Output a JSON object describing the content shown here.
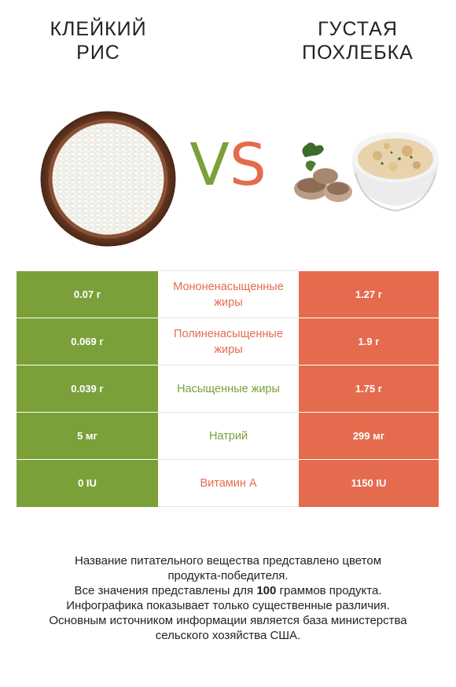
{
  "left_food": {
    "title": "КЛЕЙКИЙ\nРИС",
    "title_line1": "КЛЕЙКИЙ",
    "title_line2": "РИС",
    "image": "bowl-of-rice",
    "color": "#7ba03a"
  },
  "right_food": {
    "title_line1": "ГУСТАЯ",
    "title_line2": "ПОХЛЕБКА",
    "image": "bowl-of-clam-chowder",
    "color": "#e56b4e"
  },
  "vs": {
    "v": "V",
    "s": "S"
  },
  "rows": [
    {
      "left": "0.07 г",
      "label": "Мононенасыщенные жиры",
      "right": "1.27 г",
      "winner": "right"
    },
    {
      "left": "0.069 г",
      "label": "Полиненасыщенные жиры",
      "right": "1.9 г",
      "winner": "right"
    },
    {
      "left": "0.039 г",
      "label": "Насыщенные жиры",
      "right": "1.75 г",
      "winner": "left"
    },
    {
      "left": "5 мг",
      "label": "Натрий",
      "right": "299 мг",
      "winner": "left"
    },
    {
      "left": "0 IU",
      "label": "Витамин A",
      "right": "1150 IU",
      "winner": "right"
    }
  ],
  "footer": {
    "line1": "Название питательного вещества представлено цветом",
    "line2": "продукта-победителя.",
    "line3_prefix": "Все значения представлены для ",
    "line3_bold": "100",
    "line3_suffix": " граммов продукта.",
    "line4": "Инфографика показывает только существенные различия.",
    "line5": "Основным источником информации является база министерства",
    "line6": "сельского хозяйства США."
  }
}
